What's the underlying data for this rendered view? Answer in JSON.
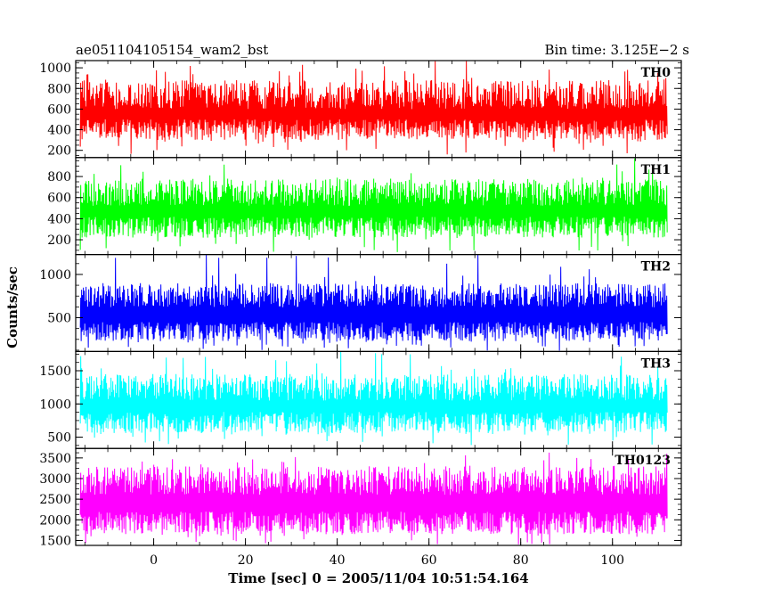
{
  "chart_data": {
    "type": "line",
    "title": "ae051104105154_wam2_bst",
    "subtitle": "Bin time: 3.125E−2 s",
    "xlabel": "Time [sec] 0 = 2005/11/04 10:51:54.164",
    "ylabel": "Counts/sec",
    "xlim": [
      -17,
      115
    ],
    "x_range": [
      -16,
      112
    ],
    "x_ticks": [
      0,
      20,
      40,
      60,
      80,
      100
    ],
    "x_tick_labels": [
      "0",
      "20",
      "40",
      "60",
      "80",
      "100"
    ],
    "panels": [
      {
        "name": "TH0",
        "color": "#ff0000",
        "ylim": [
          130,
          1070
        ],
        "y_ticks": [
          200,
          400,
          600,
          800,
          1000
        ],
        "y_tick_labels": [
          "200",
          "400",
          "600",
          "800",
          "1000"
        ],
        "low": [
          300,
          500
        ],
        "high": [
          600,
          880
        ],
        "min": 160,
        "max": 1070
      },
      {
        "name": "TH1",
        "color": "#00ff00",
        "ylim": [
          60,
          980
        ],
        "y_ticks": [
          200,
          400,
          600,
          800
        ],
        "y_tick_labels": [
          "200",
          "400",
          "600",
          "800"
        ],
        "low": [
          220,
          420
        ],
        "high": [
          520,
          780
        ],
        "min": 80,
        "max": 980
      },
      {
        "name": "TH2",
        "color": "#0000ff",
        "ylim": [
          110,
          1230
        ],
        "y_ticks": [
          500,
          1000
        ],
        "y_tick_labels": [
          "500",
          "1000"
        ],
        "low": [
          230,
          450
        ],
        "high": [
          620,
          900
        ],
        "min": 120,
        "max": 1230
      },
      {
        "name": "TH3",
        "color": "#00ffff",
        "ylim": [
          330,
          1790
        ],
        "y_ticks": [
          500,
          1000,
          1500
        ],
        "y_tick_labels": [
          "500",
          "1000",
          "1500"
        ],
        "low": [
          560,
          880
        ],
        "high": [
          1050,
          1450
        ],
        "min": 380,
        "max": 1790
      },
      {
        "name": "TH0123",
        "color": "#ff00ff",
        "ylim": [
          1380,
          3730
        ],
        "y_ticks": [
          1500,
          2000,
          2500,
          3000,
          3500
        ],
        "y_tick_labels": [
          "1500",
          "2000",
          "2500",
          "3000",
          "3500"
        ],
        "low": [
          1650,
          2200
        ],
        "high": [
          2600,
          3300
        ],
        "min": 1400,
        "max": 3700
      }
    ]
  }
}
